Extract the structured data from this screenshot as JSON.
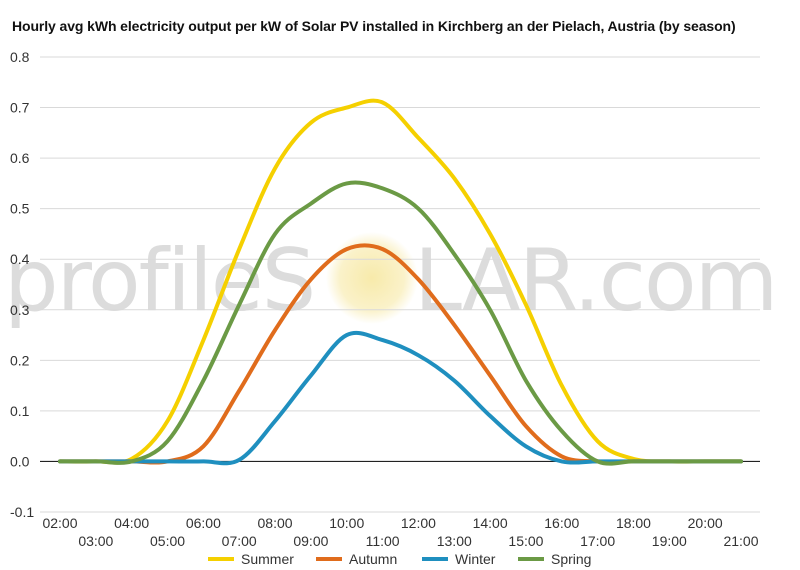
{
  "chart_data": {
    "type": "line",
    "title": "Hourly avg kWh electricity output per kW of Solar PV installed in Kirchberg an der Pielach, Austria (by season)",
    "xlabel": "",
    "ylabel": "",
    "x": [
      "02:00",
      "03:00",
      "04:00",
      "05:00",
      "06:00",
      "07:00",
      "08:00",
      "09:00",
      "10:00",
      "11:00",
      "12:00",
      "13:00",
      "14:00",
      "15:00",
      "16:00",
      "17:00",
      "18:00",
      "19:00",
      "20:00",
      "21:00"
    ],
    "x_tick_labels_upper": [
      "02:00",
      "04:00",
      "06:00",
      "08:00",
      "10:00",
      "12:00",
      "14:00",
      "16:00",
      "18:00",
      "20:00"
    ],
    "x_tick_labels_lower": [
      "03:00",
      "05:00",
      "07:00",
      "09:00",
      "11:00",
      "13:00",
      "15:00",
      "17:00",
      "19:00",
      "21:00"
    ],
    "ylim": [
      -0.1,
      0.8
    ],
    "y_ticks": [
      "0.8",
      "0.7",
      "0.6",
      "0.5",
      "0.4",
      "0.3",
      "0.2",
      "0.1",
      "0.0",
      "-0.1"
    ],
    "grid": true,
    "legend_position": "bottom",
    "series": [
      {
        "name": "Summer",
        "color": "#f5d000",
        "values": [
          0,
          0,
          0.005,
          0.08,
          0.24,
          0.42,
          0.58,
          0.67,
          0.7,
          0.71,
          0.64,
          0.56,
          0.45,
          0.31,
          0.15,
          0.04,
          0.005,
          0,
          0,
          0
        ]
      },
      {
        "name": "Autumn",
        "color": "#e06c1c",
        "values": [
          0,
          0,
          0,
          0,
          0.03,
          0.14,
          0.26,
          0.36,
          0.42,
          0.42,
          0.36,
          0.27,
          0.17,
          0.07,
          0.01,
          0,
          0,
          0,
          0,
          0
        ]
      },
      {
        "name": "Winter",
        "color": "#1f8fbf",
        "values": [
          0,
          0,
          0,
          0,
          0,
          0.003,
          0.08,
          0.17,
          0.25,
          0.24,
          0.21,
          0.16,
          0.09,
          0.03,
          0,
          0,
          0,
          0,
          0,
          0
        ]
      },
      {
        "name": "Spring",
        "color": "#6b9a45",
        "values": [
          0,
          0,
          0,
          0.04,
          0.16,
          0.31,
          0.45,
          0.51,
          0.55,
          0.54,
          0.5,
          0.41,
          0.3,
          0.16,
          0.06,
          0,
          0,
          0,
          0,
          0
        ]
      }
    ]
  },
  "watermark": {
    "part1": "profileS",
    "part2": "LAR.com",
    "sun_color": "#f7e9a6"
  }
}
